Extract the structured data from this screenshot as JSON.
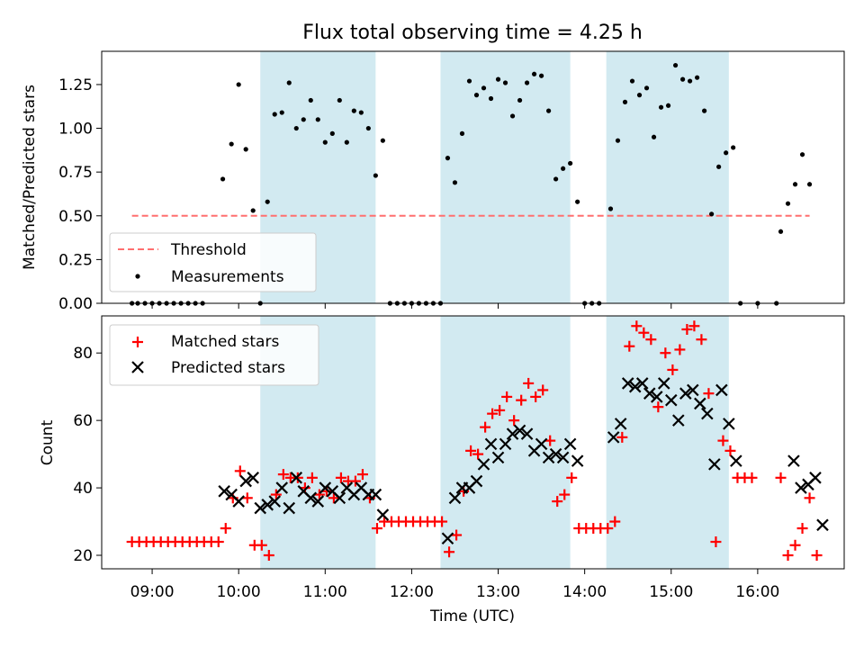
{
  "title": "Flux total observing time = 4.25 h",
  "colors": {
    "band": "#add8e6",
    "threshold": "#ff6f6f",
    "measurement": "#000000",
    "matched": "#ff0000",
    "predicted": "#000000"
  },
  "chart_data": [
    {
      "type": "scatter",
      "ylabel": "Matched/Predicted stars",
      "ylim": [
        0,
        1.44
      ],
      "yticks": [
        "0.00",
        "0.25",
        "0.50",
        "0.75",
        "1.00",
        "1.25"
      ],
      "legend": {
        "placement": "lower-left",
        "entries": [
          "Threshold",
          "Measurements"
        ]
      },
      "threshold": {
        "name": "Threshold",
        "value": 0.5,
        "x_start": "08:46",
        "x_end": "16:36"
      },
      "series": [
        {
          "name": "Measurements",
          "points": [
            [
              "08:46",
              0
            ],
            [
              "08:50",
              0
            ],
            [
              "08:55",
              0
            ],
            [
              "09:00",
              0
            ],
            [
              "09:05",
              0
            ],
            [
              "09:10",
              0
            ],
            [
              "09:15",
              0
            ],
            [
              "09:20",
              0
            ],
            [
              "09:25",
              0
            ],
            [
              "09:30",
              0
            ],
            [
              "09:35",
              0
            ],
            [
              "09:49",
              0.71
            ],
            [
              "09:55",
              0.91
            ],
            [
              "10:00",
              1.25
            ],
            [
              "10:05",
              0.88
            ],
            [
              "10:10",
              0.53
            ],
            [
              "10:15",
              0
            ],
            [
              "10:20",
              0.58
            ],
            [
              "10:25",
              1.08
            ],
            [
              "10:30",
              1.09
            ],
            [
              "10:35",
              1.26
            ],
            [
              "10:40",
              1.0
            ],
            [
              "10:45",
              1.05
            ],
            [
              "10:50",
              1.16
            ],
            [
              "10:55",
              1.05
            ],
            [
              "11:00",
              0.92
            ],
            [
              "11:05",
              0.97
            ],
            [
              "11:10",
              1.16
            ],
            [
              "11:15",
              0.92
            ],
            [
              "11:20",
              1.1
            ],
            [
              "11:25",
              1.09
            ],
            [
              "11:30",
              1.0
            ],
            [
              "11:35",
              0.73
            ],
            [
              "11:40",
              0.93
            ],
            [
              "11:45",
              0
            ],
            [
              "11:50",
              0
            ],
            [
              "11:55",
              0
            ],
            [
              "12:00",
              0
            ],
            [
              "12:05",
              0
            ],
            [
              "12:10",
              0
            ],
            [
              "12:15",
              0
            ],
            [
              "12:20",
              0
            ],
            [
              "12:25",
              0.83
            ],
            [
              "12:30",
              0.69
            ],
            [
              "12:35",
              0.97
            ],
            [
              "12:40",
              1.27
            ],
            [
              "12:45",
              1.19
            ],
            [
              "12:50",
              1.23
            ],
            [
              "12:55",
              1.17
            ],
            [
              "13:00",
              1.28
            ],
            [
              "13:05",
              1.26
            ],
            [
              "13:10",
              1.07
            ],
            [
              "13:15",
              1.16
            ],
            [
              "13:20",
              1.26
            ],
            [
              "13:25",
              1.31
            ],
            [
              "13:30",
              1.3
            ],
            [
              "13:35",
              1.1
            ],
            [
              "13:40",
              0.71
            ],
            [
              "13:45",
              0.77
            ],
            [
              "13:50",
              0.8
            ],
            [
              "13:55",
              0.58
            ],
            [
              "14:00",
              0
            ],
            [
              "14:05",
              0
            ],
            [
              "14:10",
              0
            ],
            [
              "14:18",
              0.54
            ],
            [
              "14:23",
              0.93
            ],
            [
              "14:28",
              1.15
            ],
            [
              "14:33",
              1.27
            ],
            [
              "14:38",
              1.19
            ],
            [
              "14:43",
              1.23
            ],
            [
              "14:48",
              0.95
            ],
            [
              "14:53",
              1.12
            ],
            [
              "14:58",
              1.13
            ],
            [
              "15:03",
              1.36
            ],
            [
              "15:08",
              1.28
            ],
            [
              "15:13",
              1.27
            ],
            [
              "15:18",
              1.29
            ],
            [
              "15:23",
              1.1
            ],
            [
              "15:28",
              0.51
            ],
            [
              "15:33",
              0.78
            ],
            [
              "15:38",
              0.86
            ],
            [
              "15:43",
              0.89
            ],
            [
              "15:48",
              0
            ],
            [
              "16:00",
              0
            ],
            [
              "16:13",
              0
            ],
            [
              "16:16",
              0.41
            ],
            [
              "16:21",
              0.57
            ],
            [
              "16:26",
              0.68
            ],
            [
              "16:31",
              0.85
            ],
            [
              "16:36",
              0.68
            ]
          ]
        }
      ]
    },
    {
      "type": "scatter",
      "xlabel": "Time (UTC)",
      "ylabel": "Count",
      "ylim": [
        16,
        91
      ],
      "yticks": [
        "20",
        "40",
        "60",
        "80"
      ],
      "xticks": [
        "09:00",
        "10:00",
        "11:00",
        "12:00",
        "13:00",
        "14:00",
        "15:00",
        "16:00"
      ],
      "xlim": [
        "08:25",
        "17:00"
      ],
      "legend": {
        "placement": "upper-left",
        "entries": [
          "Matched stars",
          "Predicted stars"
        ]
      },
      "bands": [
        [
          "10:15",
          "11:35"
        ],
        [
          "12:20",
          "13:50"
        ],
        [
          "14:15",
          "15:40"
        ]
      ],
      "series": [
        {
          "name": "Matched stars",
          "marker": "plus",
          "points": [
            [
              "08:46",
              24
            ],
            [
              "08:51",
              24
            ],
            [
              "08:56",
              24
            ],
            [
              "09:01",
              24
            ],
            [
              "09:06",
              24
            ],
            [
              "09:11",
              24
            ],
            [
              "09:16",
              24
            ],
            [
              "09:21",
              24
            ],
            [
              "09:26",
              24
            ],
            [
              "09:31",
              24
            ],
            [
              "09:36",
              24
            ],
            [
              "09:41",
              24
            ],
            [
              "09:46",
              24
            ],
            [
              "09:51",
              28
            ],
            [
              "09:56",
              37
            ],
            [
              "10:01",
              45
            ],
            [
              "10:06",
              37
            ],
            [
              "10:11",
              23
            ],
            [
              "10:16",
              23
            ],
            [
              "10:21",
              20
            ],
            [
              "10:26",
              38
            ],
            [
              "10:31",
              44
            ],
            [
              "10:36",
              43
            ],
            [
              "10:41",
              43
            ],
            [
              "10:46",
              40
            ],
            [
              "10:51",
              43
            ],
            [
              "10:56",
              38
            ],
            [
              "11:01",
              39
            ],
            [
              "11:06",
              37
            ],
            [
              "11:11",
              43
            ],
            [
              "11:16",
              42
            ],
            [
              "11:21",
              42
            ],
            [
              "11:26",
              44
            ],
            [
              "11:31",
              37
            ],
            [
              "11:36",
              28
            ],
            [
              "11:41",
              30
            ],
            [
              "11:46",
              30
            ],
            [
              "11:51",
              30
            ],
            [
              "11:56",
              30
            ],
            [
              "12:01",
              30
            ],
            [
              "12:06",
              30
            ],
            [
              "12:11",
              30
            ],
            [
              "12:16",
              30
            ],
            [
              "12:21",
              30
            ],
            [
              "12:26",
              21
            ],
            [
              "12:31",
              26
            ],
            [
              "12:36",
              39
            ],
            [
              "12:41",
              51
            ],
            [
              "12:46",
              50
            ],
            [
              "12:51",
              58
            ],
            [
              "12:56",
              62
            ],
            [
              "13:01",
              63
            ],
            [
              "13:06",
              67
            ],
            [
              "13:11",
              60
            ],
            [
              "13:16",
              66
            ],
            [
              "13:21",
              71
            ],
            [
              "13:26",
              67
            ],
            [
              "13:31",
              69
            ],
            [
              "13:36",
              54
            ],
            [
              "13:41",
              36
            ],
            [
              "13:46",
              38
            ],
            [
              "13:51",
              43
            ],
            [
              "13:56",
              28
            ],
            [
              "14:01",
              28
            ],
            [
              "14:06",
              28
            ],
            [
              "14:11",
              28
            ],
            [
              "14:16",
              28
            ],
            [
              "14:21",
              30
            ],
            [
              "14:26",
              55
            ],
            [
              "14:31",
              82
            ],
            [
              "14:36",
              88
            ],
            [
              "14:41",
              86
            ],
            [
              "14:46",
              84
            ],
            [
              "14:51",
              64
            ],
            [
              "14:56",
              80
            ],
            [
              "15:01",
              75
            ],
            [
              "15:06",
              81
            ],
            [
              "15:11",
              87
            ],
            [
              "15:16",
              88
            ],
            [
              "15:21",
              84
            ],
            [
              "15:26",
              68
            ],
            [
              "15:31",
              24
            ],
            [
              "15:36",
              54
            ],
            [
              "15:41",
              51
            ],
            [
              "15:46",
              43
            ],
            [
              "15:51",
              43
            ],
            [
              "15:56",
              43
            ],
            [
              "16:16",
              43
            ],
            [
              "16:21",
              20
            ],
            [
              "16:26",
              23
            ],
            [
              "16:31",
              28
            ],
            [
              "16:36",
              37
            ],
            [
              "16:41",
              20
            ]
          ]
        },
        {
          "name": "Predicted stars",
          "marker": "x",
          "points": [
            [
              "09:50",
              39
            ],
            [
              "09:55",
              38
            ],
            [
              "10:00",
              36
            ],
            [
              "10:05",
              42
            ],
            [
              "10:10",
              43
            ],
            [
              "10:15",
              34
            ],
            [
              "10:20",
              35
            ],
            [
              "10:25",
              36
            ],
            [
              "10:30",
              40
            ],
            [
              "10:35",
              34
            ],
            [
              "10:40",
              43
            ],
            [
              "10:45",
              39
            ],
            [
              "10:50",
              37
            ],
            [
              "10:55",
              36
            ],
            [
              "11:00",
              40
            ],
            [
              "11:05",
              39
            ],
            [
              "11:10",
              37
            ],
            [
              "11:15",
              40
            ],
            [
              "11:20",
              38
            ],
            [
              "11:25",
              40
            ],
            [
              "11:30",
              38
            ],
            [
              "11:35",
              38
            ],
            [
              "11:40",
              32
            ],
            [
              "12:25",
              25
            ],
            [
              "12:30",
              37
            ],
            [
              "12:35",
              40
            ],
            [
              "12:40",
              40
            ],
            [
              "12:45",
              42
            ],
            [
              "12:50",
              47
            ],
            [
              "12:55",
              53
            ],
            [
              "13:00",
              49
            ],
            [
              "13:05",
              53
            ],
            [
              "13:10",
              56
            ],
            [
              "13:15",
              57
            ],
            [
              "13:20",
              56
            ],
            [
              "13:25",
              51
            ],
            [
              "13:30",
              53
            ],
            [
              "13:35",
              49
            ],
            [
              "13:40",
              50
            ],
            [
              "13:45",
              49
            ],
            [
              "13:50",
              53
            ],
            [
              "13:55",
              48
            ],
            [
              "14:20",
              55
            ],
            [
              "14:25",
              59
            ],
            [
              "14:30",
              71
            ],
            [
              "14:35",
              70
            ],
            [
              "14:40",
              71
            ],
            [
              "14:45",
              68
            ],
            [
              "14:50",
              67
            ],
            [
              "14:55",
              71
            ],
            [
              "15:00",
              66
            ],
            [
              "15:05",
              60
            ],
            [
              "15:10",
              68
            ],
            [
              "15:15",
              69
            ],
            [
              "15:20",
              65
            ],
            [
              "15:25",
              62
            ],
            [
              "15:30",
              47
            ],
            [
              "15:35",
              69
            ],
            [
              "15:40",
              59
            ],
            [
              "15:45",
              48
            ],
            [
              "16:25",
              48
            ],
            [
              "16:30",
              40
            ],
            [
              "16:35",
              41
            ],
            [
              "16:40",
              43
            ],
            [
              "16:45",
              29
            ]
          ]
        }
      ]
    }
  ]
}
